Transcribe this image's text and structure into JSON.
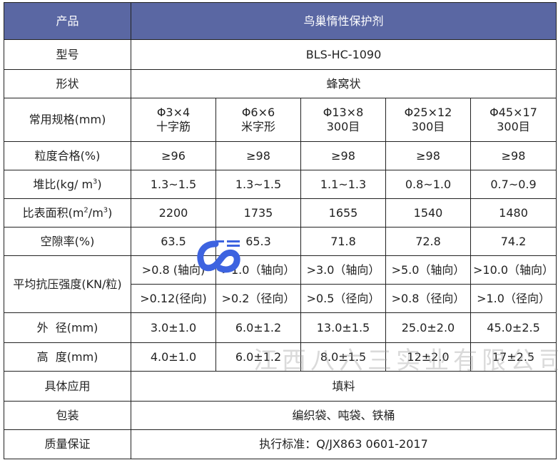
{
  "header": {
    "label": "产品",
    "product": "鸟巢惰性保护剂"
  },
  "rows": {
    "model": {
      "label": "型号",
      "value": "BLS-HC-1090"
    },
    "shape": {
      "label": "形状",
      "value": "蜂窝状"
    },
    "spec": {
      "label": "常用规格(mm)",
      "values": [
        [
          "Φ3×4",
          "十字筋"
        ],
        [
          "Φ6×6",
          "米字形"
        ],
        [
          "Φ13×8",
          "300目"
        ],
        [
          "Φ25×12",
          "300目"
        ],
        [
          "Φ45×17",
          "300目"
        ]
      ]
    },
    "grain": {
      "label": "粒度合格(%)",
      "values": [
        "≥96",
        "≥98",
        "≥98",
        "≥98",
        "≥98"
      ]
    },
    "bulk": {
      "label_pre": "堆比(kg/ m",
      "label_sup": "3",
      "label_post": ")",
      "values": [
        "1.3~1.5",
        "1.3~1.5",
        "1.1~1.3",
        "0.8~1.0",
        "0.7~0.9"
      ]
    },
    "surface": {
      "label_pre": "比表面积(m",
      "label_sup1": "2",
      "label_mid": "/m",
      "label_sup2": "3",
      "label_post": ")",
      "values": [
        "2200",
        "1735",
        "1655",
        "1540",
        "1480"
      ]
    },
    "void": {
      "label": "空隙率(%)",
      "values": [
        "63.5",
        "65.3",
        "71.8",
        "72.8",
        "74.2"
      ]
    },
    "strength": {
      "label": "平均抗压强度(KN/粒)",
      "axial": [
        ">0.8 (轴向)",
        ">1.0（轴向）",
        ">3.0（轴向）",
        ">5.0（轴向）",
        ">10.0（轴向）"
      ],
      "radial": [
        ">0.12(径向)",
        ">0.2（径向）",
        ">0.5（径向）",
        ">0.8（径向）",
        ">1.0（径向）"
      ]
    },
    "outer": {
      "label": "外  径(mm)",
      "values": [
        "3.0±1.0",
        "6.0±1.2",
        "13.0±1.5",
        "25.0±2.0",
        "45.0±2.5"
      ]
    },
    "height": {
      "label": "高  度(mm)",
      "values": [
        "4.0±1.0",
        "6.0±1.2",
        "8.0±1.5",
        "12±2.0",
        "17±2.5"
      ]
    },
    "application": {
      "label": "具体应用",
      "value": "填料"
    },
    "packing": {
      "label": "包装",
      "value": "编织袋、吨袋、铁桶"
    },
    "quality": {
      "label": "质量保证",
      "value": "执行标准：Q/JX863 0601-2017"
    }
  },
  "watermark": "江西八六三实业有限公司",
  "colors": {
    "header_bg": "#5a67a3",
    "logo": "#3d63e0"
  }
}
